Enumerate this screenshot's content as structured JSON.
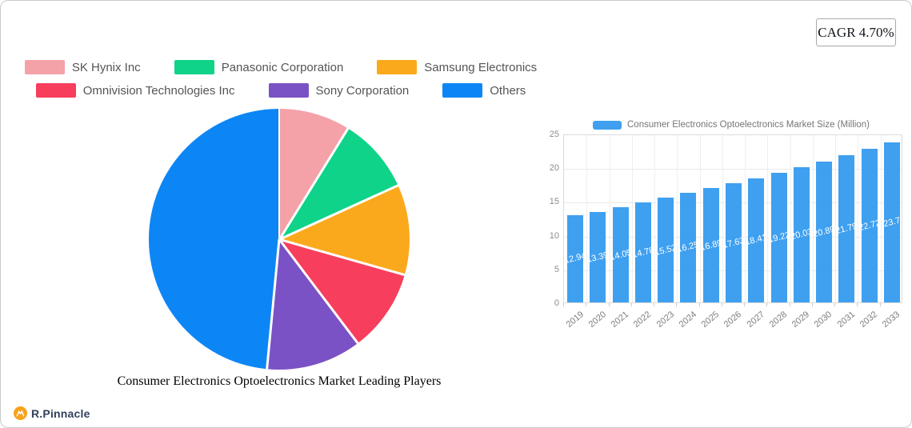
{
  "page": {
    "background": "#ffffff",
    "border_color": "#c9c9c9"
  },
  "cagr_badge": {
    "label": "CAGR 4.70%"
  },
  "brand": {
    "name": "R.Pinnacle",
    "icon": "mountain-logo",
    "icon_color": "#F6A21C",
    "text_color": "#33415C"
  },
  "chart_data": [
    {
      "type": "pie",
      "title": "Consumer Electronics Optoelectronics Market Leading Players",
      "legend_position": "top-left",
      "direction": "clockwise",
      "start_angle_deg": 0,
      "slices": [
        {
          "label": "SK Hynix Inc",
          "value_percent": 8.8,
          "color": "#F4A1A8"
        },
        {
          "label": "Panasonic Corporation",
          "value_percent": 9.4,
          "color": "#0ED389"
        },
        {
          "label": "Samsung Electronics",
          "value_percent": 11.2,
          "color": "#FBA91C"
        },
        {
          "label": "Omnivision Technologies Inc",
          "value_percent": 10.3,
          "color": "#F73E5D"
        },
        {
          "label": "Sony Corporation",
          "value_percent": 11.8,
          "color": "#7A52C5"
        },
        {
          "label": "Others",
          "value_percent": 48.5,
          "color": "#0D86F5"
        }
      ]
    },
    {
      "type": "bar",
      "series_name": "Consumer Electronics Optoelectronics Market Size (Million)",
      "bar_color": "#3FA0F0",
      "categories": [
        "2019",
        "2020",
        "2021",
        "2022",
        "2023",
        "2024",
        "2025",
        "2026",
        "2027",
        "2028",
        "2029",
        "2030",
        "2031",
        "2032",
        "2033"
      ],
      "values": [
        12.94,
        13.39,
        14.05,
        14.78,
        15.52,
        16.25,
        16.89,
        17.63,
        18.41,
        19.22,
        20.03,
        20.89,
        21.79,
        22.72,
        23.7
      ],
      "ylim": [
        0,
        25
      ],
      "yticks": [
        0,
        5,
        10,
        15,
        20,
        25
      ],
      "grid": true,
      "value_label_position": "inside-middle",
      "value_label_color": "#ffffff"
    }
  ]
}
